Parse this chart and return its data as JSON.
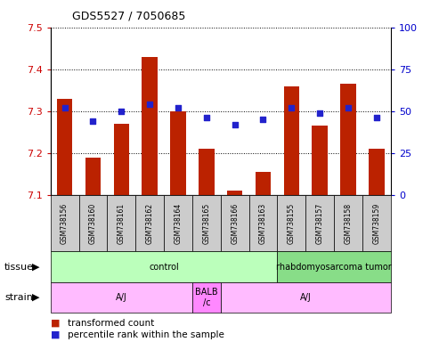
{
  "title": "GDS5527 / 7050685",
  "samples": [
    "GSM738156",
    "GSM738160",
    "GSM738161",
    "GSM738162",
    "GSM738164",
    "GSM738165",
    "GSM738166",
    "GSM738163",
    "GSM738155",
    "GSM738157",
    "GSM738158",
    "GSM738159"
  ],
  "bar_values": [
    7.33,
    7.19,
    7.27,
    7.43,
    7.3,
    7.21,
    7.11,
    7.155,
    7.36,
    7.265,
    7.365,
    7.21
  ],
  "dot_values": [
    52,
    44,
    50,
    54,
    52,
    46,
    42,
    45,
    52,
    49,
    52,
    46
  ],
  "bar_color": "#bb2200",
  "dot_color": "#2222cc",
  "ylim_left": [
    7.1,
    7.5
  ],
  "ylim_right": [
    0,
    100
  ],
  "yticks_left": [
    7.1,
    7.2,
    7.3,
    7.4,
    7.5
  ],
  "yticks_right": [
    0,
    25,
    50,
    75,
    100
  ],
  "tissue_labels": [
    {
      "text": "control",
      "start": 0,
      "end": 8,
      "color": "#bbffbb"
    },
    {
      "text": "rhabdomyosarcoma tumor",
      "start": 8,
      "end": 12,
      "color": "#88dd88"
    }
  ],
  "strain_labels": [
    {
      "text": "A/J",
      "start": 0,
      "end": 5,
      "color": "#ffbbff"
    },
    {
      "text": "BALB\n/c",
      "start": 5,
      "end": 6,
      "color": "#ff88ff"
    },
    {
      "text": "A/J",
      "start": 6,
      "end": 12,
      "color": "#ffbbff"
    }
  ],
  "tissue_row_label": "tissue",
  "strain_row_label": "strain",
  "legend_items": [
    {
      "label": "transformed count",
      "color": "#bb2200"
    },
    {
      "label": "percentile rank within the sample",
      "color": "#2222cc"
    }
  ],
  "ybase": 7.1,
  "sample_box_color": "#cccccc",
  "left_label_color": "#cc0000",
  "right_label_color": "#0000cc"
}
